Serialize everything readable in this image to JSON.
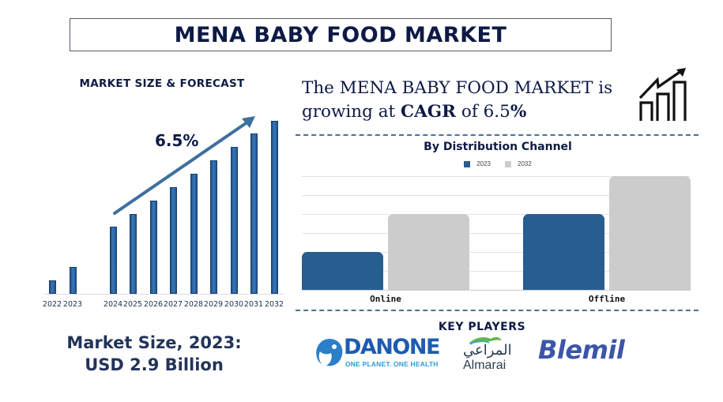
{
  "header": {
    "title": "MENA BABY FOOD MARKET"
  },
  "market_forecast": {
    "heading": "MARKET SIZE & FORECAST",
    "cagr_label": "6.5%",
    "market_size_line1": "Market Size, 2023:",
    "market_size_line2": "USD 2.9 Billion"
  },
  "headline": {
    "line1": "The MENA BABY FOOD MARKET is",
    "line2_prefix": "growing at ",
    "line2_bold": "CAGR",
    "line2_mid": " of 6.5",
    "line2_suffix": "%",
    "icon": "growth-chart-icon"
  },
  "distribution": {
    "title": "By Distribution Channel",
    "legend": [
      {
        "label": "2023",
        "color": "#285d8f"
      },
      {
        "label": "2032",
        "color": "#cccccc"
      }
    ],
    "categories": [
      "Online",
      "Offline"
    ]
  },
  "key_players": {
    "title": "KEY PLAYERS",
    "danone": {
      "name": "DANONE",
      "tagline": "ONE PLANET. ONE HEALTH"
    },
    "almarai": {
      "arabic": "المراعي",
      "name": "Almarai"
    },
    "blemil": {
      "name": "Blemil"
    }
  },
  "colors": {
    "title_navy": "#0e1a45",
    "bar_blue": "#285d8f",
    "bar_gray": "#cccccc",
    "arrow": "#3e6f9e",
    "dash": "#4a6e97"
  },
  "chart_data": [
    {
      "type": "bar",
      "title": "MARKET SIZE & FORECAST",
      "categories": [
        "2022",
        "2023",
        "2024",
        "2025",
        "2026",
        "2027",
        "2028",
        "2029",
        "2030",
        "2031",
        "2032"
      ],
      "values": [
        17,
        34,
        85,
        101,
        118,
        135,
        152,
        169,
        186,
        203,
        219
      ],
      "xlabel": "",
      "ylabel": "",
      "annotation": "6.5% CAGR arrow",
      "grid": false,
      "note": "Relative bar heights in pixels; no y-axis values shown"
    },
    {
      "type": "bar",
      "title": "By Distribution Channel",
      "categories": [
        "Online",
        "Offline"
      ],
      "series": [
        {
          "name": "2023",
          "values": [
            2,
            4
          ]
        },
        {
          "name": "2032",
          "values": [
            4,
            6
          ]
        }
      ],
      "ylim": [
        0,
        6
      ],
      "grid": true,
      "legend_position": "top",
      "note": "Relative heights in gridline units; no y-axis labels shown"
    }
  ]
}
